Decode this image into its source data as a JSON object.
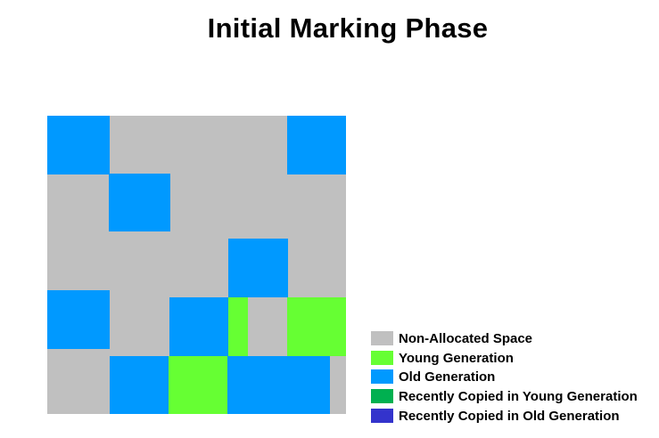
{
  "title": "Initial Marking Phase",
  "colors": {
    "non_allocated": "#c0c0c0",
    "young": "#66ff33",
    "old": "#0099ff",
    "recent_young": "#00b050",
    "recent_old": "#3333cc"
  },
  "legend": [
    {
      "label": "Non-Allocated Space",
      "color": "#c0c0c0"
    },
    {
      "label": "Young Generation",
      "color": "#66ff33"
    },
    {
      "label": "Old Generation",
      "color": "#0099ff"
    },
    {
      "label": "Recently Copied in Young Generation",
      "color": "#00b050"
    },
    {
      "label": "Recently Copied in Old Generation",
      "color": "#3333cc"
    }
  ]
}
